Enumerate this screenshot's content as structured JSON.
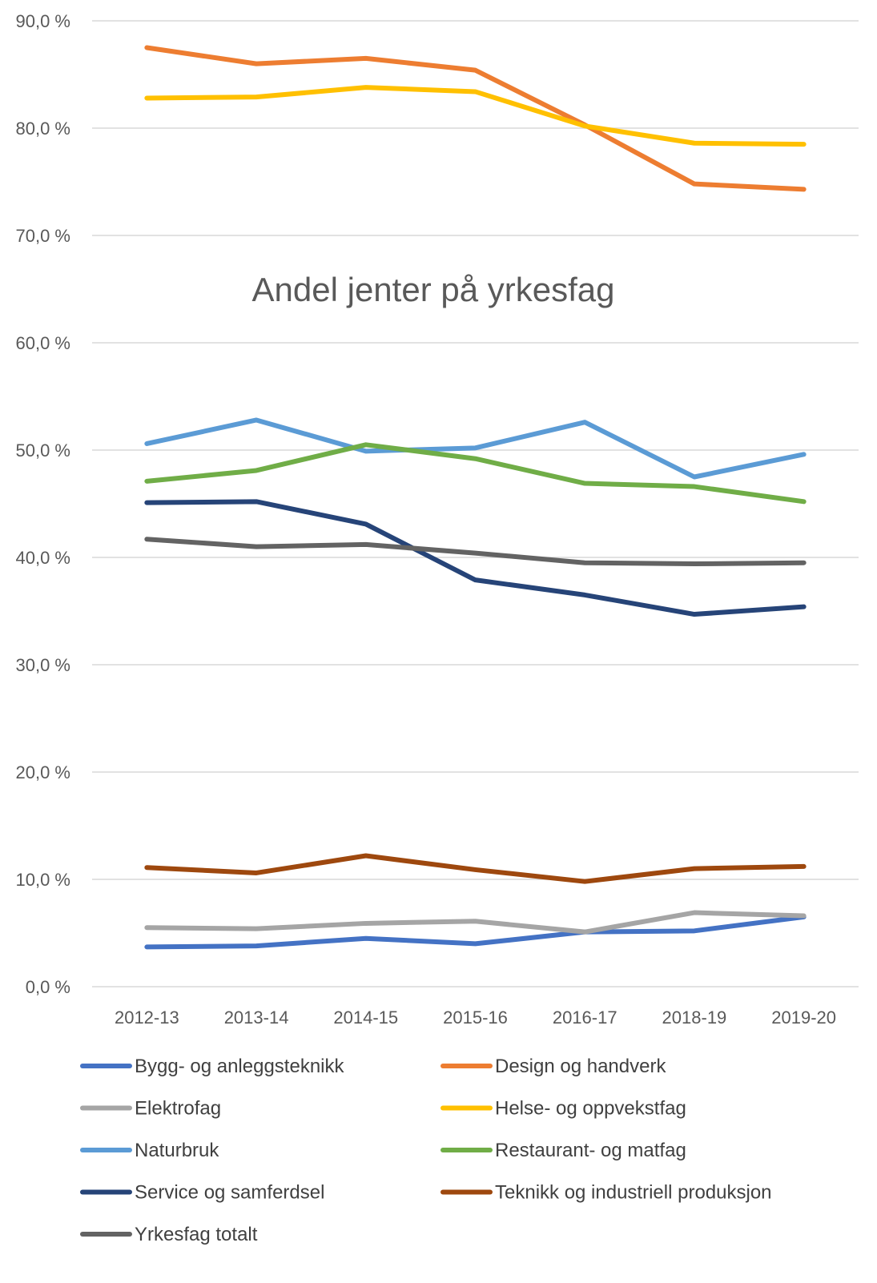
{
  "chart_data": {
    "type": "line",
    "title": "Andel jenter på yrkesfag",
    "xlabel": "",
    "ylabel": "",
    "categories": [
      "2012-13",
      "2013-14",
      "2014-15",
      "2015-16",
      "2016-17",
      "2018-19",
      "2019-20"
    ],
    "ylim": [
      0,
      90
    ],
    "yticks": [
      0,
      10,
      20,
      30,
      40,
      50,
      60,
      70,
      80,
      90
    ],
    "ytick_labels": [
      "0,0 %",
      "10,0 %",
      "20,0 %",
      "30,0 %",
      "40,0 %",
      "50,0 %",
      "60,0 %",
      "70,0 %",
      "80,0 %",
      "90,0 %"
    ],
    "grid": true,
    "legend_position": "bottom",
    "series": [
      {
        "name": "Bygg- og anleggsteknikk",
        "color": "#4472C4",
        "values": [
          3.7,
          3.8,
          4.5,
          4.0,
          5.1,
          5.2,
          6.5
        ]
      },
      {
        "name": "Design og handverk",
        "color": "#ED7D31",
        "values": [
          87.5,
          86.0,
          86.5,
          85.4,
          80.3,
          74.8,
          74.3
        ]
      },
      {
        "name": "Elektrofag",
        "color": "#A5A5A5",
        "values": [
          5.5,
          5.4,
          5.9,
          6.1,
          5.1,
          6.9,
          6.6
        ]
      },
      {
        "name": "Helse- og oppvekstfag",
        "color": "#FFC000",
        "values": [
          82.8,
          82.9,
          83.8,
          83.4,
          80.2,
          78.6,
          78.5
        ]
      },
      {
        "name": "Naturbruk",
        "color": "#5B9BD5",
        "values": [
          50.6,
          52.8,
          49.9,
          50.2,
          52.6,
          47.5,
          49.6
        ]
      },
      {
        "name": "Restaurant- og matfag",
        "color": "#70AD47",
        "values": [
          47.1,
          48.1,
          50.5,
          49.2,
          46.9,
          46.6,
          45.2
        ]
      },
      {
        "name": "Service og samferdsel",
        "color": "#264478",
        "values": [
          45.1,
          45.2,
          43.1,
          37.9,
          36.5,
          34.7,
          35.4
        ]
      },
      {
        "name": "Teknikk og industriell produksjon",
        "color": "#9E480E",
        "values": [
          11.1,
          10.6,
          12.2,
          10.9,
          9.8,
          11.0,
          11.2
        ]
      },
      {
        "name": "Yrkesfag totalt",
        "color": "#636363",
        "values": [
          41.7,
          41.0,
          41.2,
          40.4,
          39.5,
          39.4,
          39.5
        ]
      }
    ]
  }
}
